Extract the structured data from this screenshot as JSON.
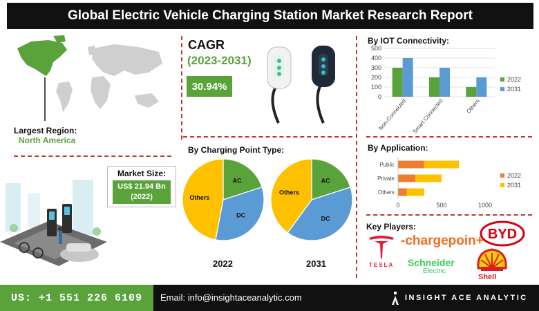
{
  "title": "Global Electric Vehicle Charging Station Market Research Report",
  "region": {
    "label": "Largest Region:",
    "value": "North America"
  },
  "market_size": {
    "label": "Market Size:",
    "value_line1": "US$ 21.94 Bn",
    "value_line2": "(2022)"
  },
  "cagr": {
    "label": "CAGR",
    "period": "(2023-2031)",
    "value": "30.94%"
  },
  "charging_point_heading": "By Charging Point Type:",
  "iot_heading": "By IOT Connectivity:",
  "application_heading": "By Application:",
  "key_players_heading": "Key Players:",
  "logos": {
    "tesla": "TESLA",
    "chargepoint": "-chargepoin+",
    "schneider_1": "Schneider",
    "schneider_2": "Electric",
    "byd": "BYD",
    "shell": "Shell"
  },
  "footer": {
    "phone": "US: +1 551 226 6109",
    "email": "Email: info@insightaceanalytic.com",
    "brand": "INSIGHT ACE ANALYTIC"
  },
  "colors": {
    "green": "#5aa33a",
    "blue": "#5b9bd5",
    "orange": "#ed7d31",
    "yellow": "#ffc000",
    "dark": "#111111",
    "red": "#c0392b"
  },
  "chart_data": [
    {
      "id": "iot",
      "type": "bar",
      "categories": [
        "Non-Connected",
        "Smart Connected",
        "Others"
      ],
      "series": [
        {
          "name": "2022",
          "values": [
            300,
            200,
            100
          ],
          "color": "#5aa33a"
        },
        {
          "name": "2031",
          "values": [
            400,
            300,
            200
          ],
          "color": "#5b9bd5"
        }
      ],
      "ylim": [
        0,
        500
      ],
      "yticks": [
        0,
        100,
        200,
        300,
        400,
        500
      ],
      "legend": "right",
      "grid": true
    },
    {
      "id": "application",
      "type": "bar",
      "orientation": "horizontal",
      "stacked": true,
      "categories": [
        "Public",
        "Private",
        "Others"
      ],
      "series": [
        {
          "name": "2022",
          "values": [
            300,
            200,
            100
          ],
          "color": "#ed7d31"
        },
        {
          "name": "2031",
          "values": [
            400,
            300,
            200
          ],
          "color": "#ffc000"
        }
      ],
      "xlim": [
        0,
        1000
      ],
      "xticks": [
        0,
        500,
        1000
      ],
      "legend": "right"
    },
    {
      "id": "pie2022",
      "type": "pie",
      "xlabel": "2022",
      "slices": [
        {
          "label": "AC",
          "value": 20,
          "color": "#5aa33a"
        },
        {
          "label": "DC",
          "value": 33,
          "color": "#5b9bd5"
        },
        {
          "label": "Others",
          "value": 47,
          "color": "#ffc000"
        }
      ]
    },
    {
      "id": "pie2031",
      "type": "pie",
      "xlabel": "2031",
      "slices": [
        {
          "label": "AC",
          "value": 20,
          "color": "#5aa33a"
        },
        {
          "label": "DC",
          "value": 40,
          "color": "#5b9bd5"
        },
        {
          "label": "Others",
          "value": 40,
          "color": "#ffc000"
        }
      ]
    }
  ]
}
